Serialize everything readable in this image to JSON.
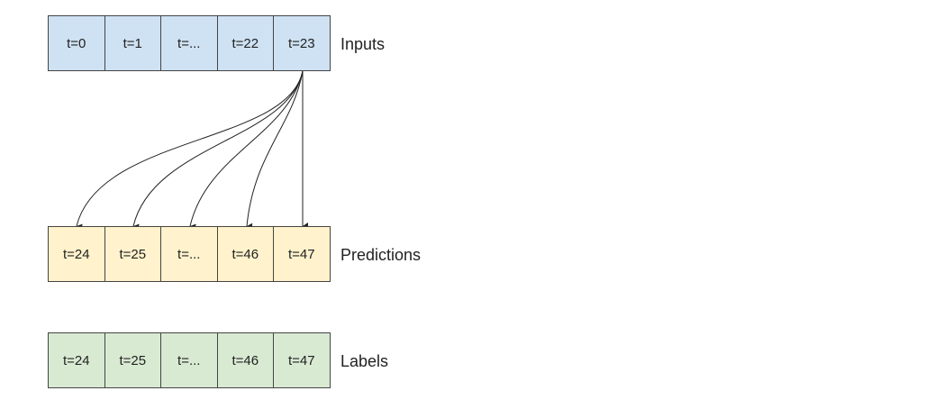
{
  "colors": {
    "inputs_fill": "#cfe2f3",
    "predictions_fill": "#fff2cc",
    "labels_fill": "#d9ead3",
    "border": "#444444",
    "arrow": "#222222"
  },
  "inputs": {
    "label": "Inputs",
    "cells": [
      "t=0",
      "t=1",
      "t=...",
      "t=22",
      "t=23"
    ]
  },
  "predictions": {
    "label": "Predictions",
    "cells": [
      "t=24",
      "t=25",
      "t=...",
      "t=46",
      "t=47"
    ]
  },
  "labels": {
    "label": "Labels",
    "cells": [
      "t=24",
      "t=25",
      "t=...",
      "t=46",
      "t=47"
    ]
  }
}
